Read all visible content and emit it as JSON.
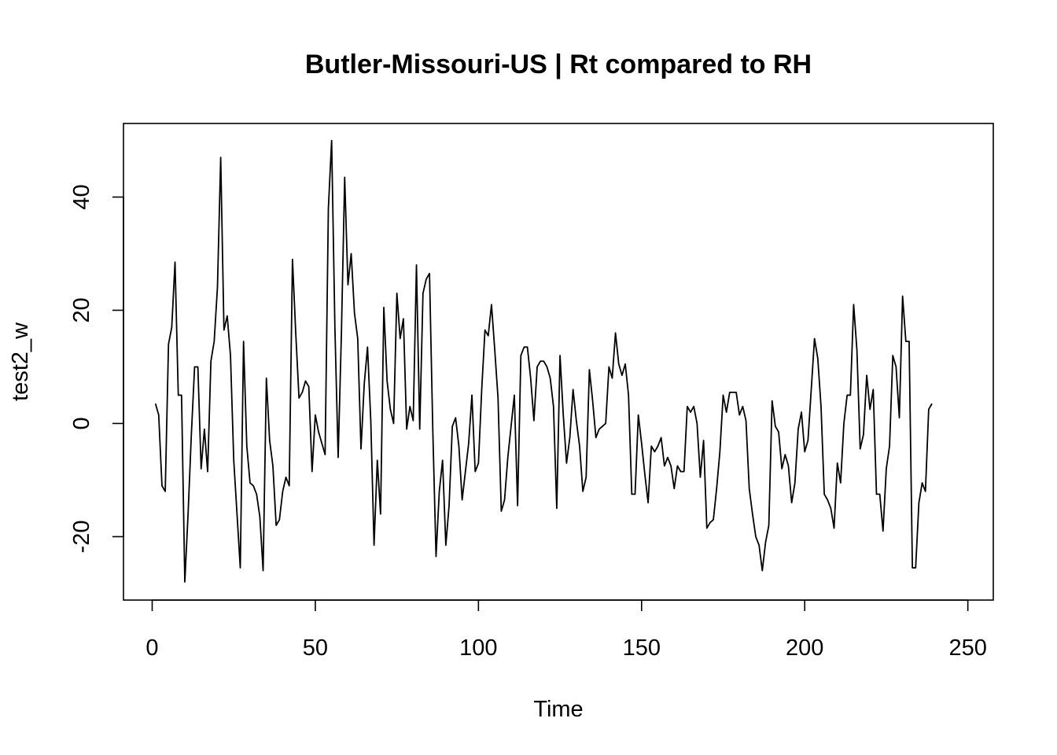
{
  "chart_data": {
    "type": "line",
    "title": "Butler-Missouri-US | Rt compared to RH",
    "xlabel": "Time",
    "ylabel": "test2_w",
    "xlim": [
      -8.8,
      257.8
    ],
    "ylim": [
      -31.2,
      53.0
    ],
    "xticks": [
      0,
      50,
      100,
      150,
      200,
      250
    ],
    "xtick_labels": [
      "0",
      "50",
      "100",
      "150",
      "200",
      "250"
    ],
    "yticks": [
      -20,
      0,
      20,
      40
    ],
    "ytick_labels": [
      "-20",
      "0",
      "20",
      "40"
    ],
    "grid": false,
    "line_color": "#000000",
    "series": [
      {
        "x_start": 1,
        "values": [
          3.5,
          1.5,
          -11,
          -12,
          14,
          17,
          28.5,
          5,
          5,
          -28,
          -16,
          -2,
          10,
          10,
          -8,
          -1,
          -8.5,
          11,
          14.5,
          24,
          47,
          16.5,
          19,
          12,
          -6.5,
          -16,
          -25.5,
          14.5,
          -4,
          -10.5,
          -11,
          -12.5,
          -16.5,
          -26,
          8,
          -3,
          -7.5,
          -18,
          -17,
          -12,
          -9.5,
          -11,
          29,
          16,
          4.5,
          5.5,
          7.5,
          6.5,
          -8.5,
          1.5,
          -1.5,
          -3.5,
          -5.5,
          38,
          50,
          17,
          -6,
          16,
          43.5,
          24.5,
          30,
          19.5,
          15,
          -4.5,
          7,
          13.5,
          0.5,
          -21.5,
          -6.5,
          -16,
          20.5,
          7.5,
          2.5,
          0,
          23,
          15,
          18.5,
          -1,
          3,
          0.5,
          28,
          -1,
          23,
          25.5,
          26.5,
          -1,
          -23.5,
          -12,
          -6.5,
          -21.5,
          -14.5,
          -0.5,
          1,
          -4,
          -13.5,
          -8.5,
          -3.5,
          5,
          -8.5,
          -7,
          6,
          16.5,
          15.5,
          21,
          13,
          4.5,
          -15.5,
          -13.5,
          -6,
          -0.5,
          5,
          -14.5,
          12,
          13.5,
          13.5,
          8,
          0.5,
          10,
          11,
          11,
          10,
          8,
          3,
          -15,
          12,
          1.5,
          -7,
          -2.5,
          6,
          0.5,
          -4,
          -12,
          -9.5,
          9.5,
          4,
          -2.5,
          -1,
          -0.5,
          0,
          10,
          8,
          16,
          10.5,
          8.5,
          10.5,
          5,
          -12.5,
          -12.5,
          1.5,
          -3.5,
          -9,
          -14,
          -4,
          -5,
          -4,
          -2.5,
          -7.5,
          -6,
          -7.5,
          -11.5,
          -7.5,
          -8.5,
          -8.5,
          3,
          2,
          3,
          0,
          -9.5,
          -3,
          -18.5,
          -17.5,
          -17,
          -11.5,
          -5,
          5,
          2,
          5.5,
          5.5,
          5.5,
          1.5,
          3,
          0.5,
          -11.5,
          -16,
          -20,
          -21.5,
          -26,
          -21,
          -18,
          4,
          -0.5,
          -1.5,
          -8,
          -5.5,
          -7.5,
          -14,
          -10.5,
          -1,
          2,
          -5,
          -3,
          6,
          15,
          11.5,
          3,
          -12.5,
          -13.5,
          -15,
          -18.5,
          -7,
          -10.5,
          0,
          5,
          5,
          21,
          13,
          -4.5,
          -2,
          8.5,
          2.5,
          6,
          -12.5,
          -12.5,
          -19,
          -8,
          -4,
          12,
          10,
          1,
          22.5,
          14.5,
          14.5,
          -25.5,
          -25.5,
          -14,
          -10.5,
          -12,
          2.5,
          3.5
        ]
      }
    ]
  }
}
